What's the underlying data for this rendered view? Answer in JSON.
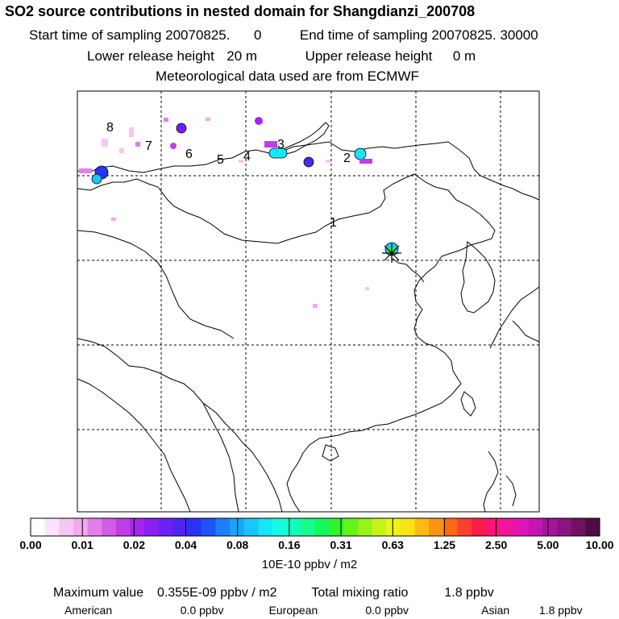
{
  "header": {
    "title": "SO2 source contributions in nested domain for Shangdianzi_200708",
    "start_label": "Start time of sampling 20070825.",
    "start_value": "0",
    "end_label": "End time of sampling 20070825. 30000",
    "lower_label": "Lower release height",
    "lower_value": "20 m",
    "upper_label": "Upper release height",
    "upper_value": "0 m",
    "met_line": "Meteorological data used are from ECMWF"
  },
  "map": {
    "cluster_labels": [
      "1",
      "2",
      "3",
      "4",
      "5",
      "6",
      "7",
      "8"
    ],
    "station_marker": "star-cross",
    "colors": {
      "frame": "#000000",
      "coast": "#000000",
      "grid": "#000000"
    }
  },
  "colorbar": {
    "tick_labels": [
      "0.00",
      "0.01",
      "0.02",
      "0.04",
      "0.08",
      "0.16",
      "0.31",
      "0.63",
      "1.25",
      "2.50",
      "5.00",
      "10.00"
    ],
    "colors": [
      "#ffffff",
      "#fbe3fb",
      "#f6c6f6",
      "#f0a8f0",
      "#e27fe9",
      "#d25ce6",
      "#c03ce9",
      "#a724ee",
      "#8a1ef2",
      "#6d21f4",
      "#4d26f6",
      "#2b32f7",
      "#1c55f8",
      "#1a80fa",
      "#1aa4fb",
      "#17c6fc",
      "#14e6fc",
      "#14fce2",
      "#14fcb8",
      "#14fc8a",
      "#16f85a",
      "#30f42c",
      "#64f418",
      "#96f416",
      "#c6f416",
      "#ecf416",
      "#fce214",
      "#fcbb14",
      "#fc9414",
      "#fc6a14",
      "#fc4030",
      "#fc1c4c",
      "#fc1478",
      "#f4149c",
      "#e114b5",
      "#c414b2",
      "#a81499",
      "#8c1480",
      "#6e1262",
      "#4f0c44"
    ],
    "unit_label": "10E-10 ppbv / m2"
  },
  "stats": {
    "max_label": "Maximum value",
    "max_value": "0.355E-09 ppbv / m2",
    "total_label": "Total mixing ratio",
    "total_value": "1.8 ppbv",
    "regions": [
      {
        "name": "American",
        "value": "0.0 ppbv"
      },
      {
        "name": "European",
        "value": "0.0 ppbv"
      },
      {
        "name": "Asian",
        "value": "1.8 ppbv"
      }
    ]
  }
}
